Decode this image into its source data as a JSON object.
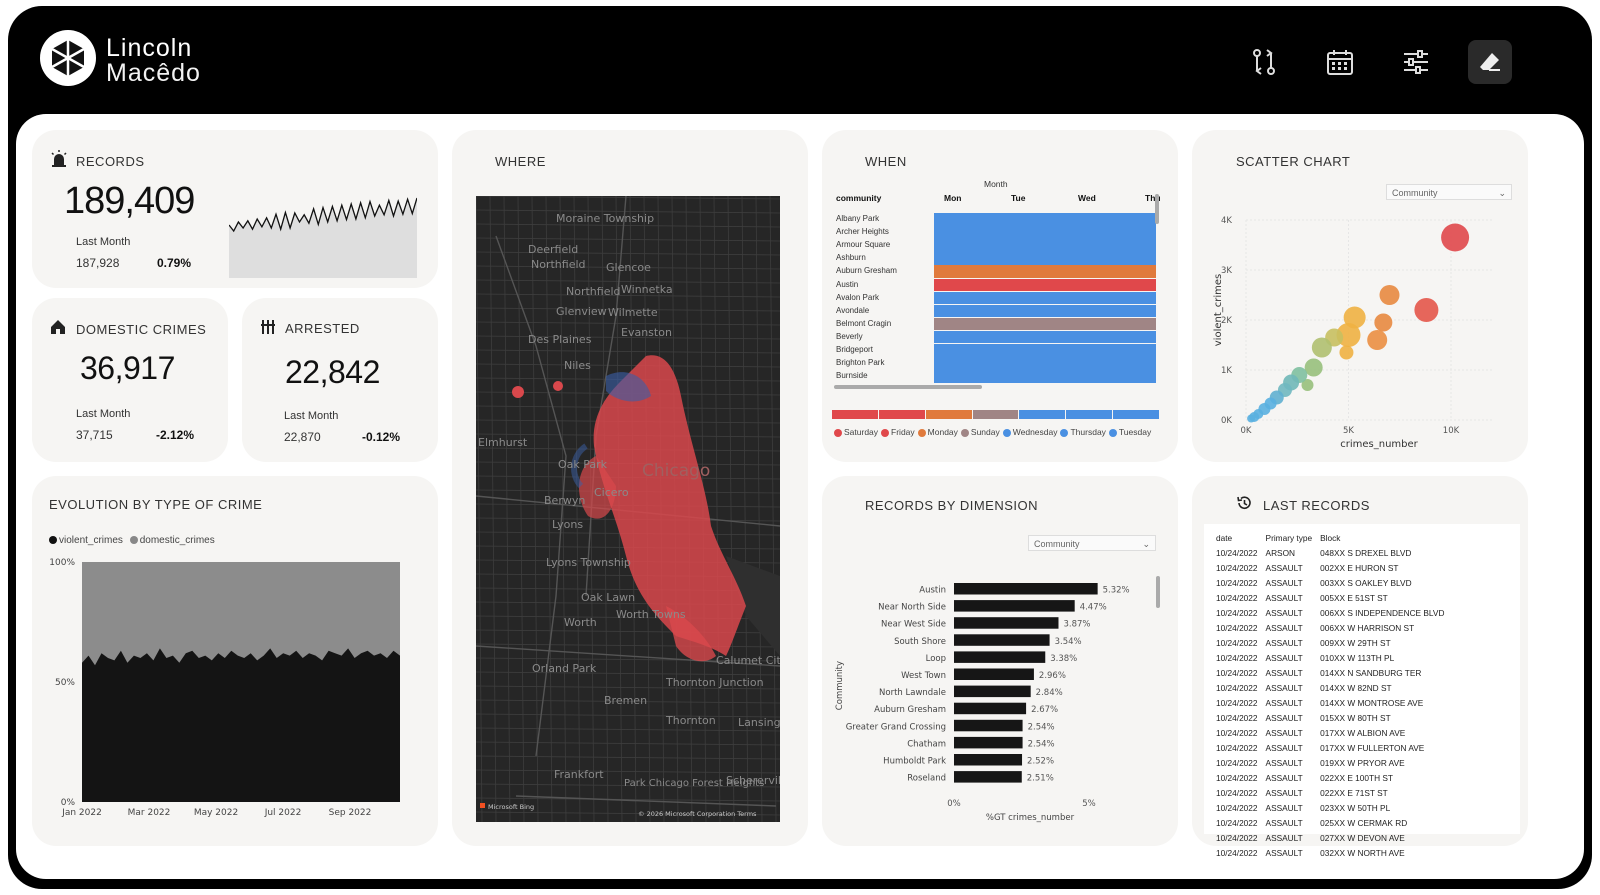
{
  "brand": {
    "line1": "Lincoln",
    "line2": "Macêdo"
  },
  "header_icons": [
    "compare-icon",
    "calendar-icon",
    "filter-sliders-icon",
    "eraser-icon"
  ],
  "colors": {
    "accent": "#e0484b",
    "bar": "#1a1a1a",
    "blue": "#4a90e2",
    "orange": "#e07a3c"
  },
  "records": {
    "title": "RECORDS",
    "value": "189,409",
    "last_label": "Last Month",
    "last_value": "187,928",
    "change": "0.79%"
  },
  "domestic": {
    "title": "DOMESTIC CRIMES",
    "value": "36,917",
    "last_label": "Last Month",
    "last_value": "37,715",
    "change": "-2.12%"
  },
  "arrested": {
    "title": "ARRESTED",
    "value": "22,842",
    "last_label": "Last Month",
    "last_value": "22,870",
    "change": "-0.12%"
  },
  "where": {
    "title": "WHERE",
    "map_labels": [
      "Moraine Township",
      "Deerfield",
      "Northfield",
      "Glencoe",
      "Winnetka",
      "Northfield",
      "Glenview",
      "Wilmette",
      "Evanston",
      "Des Plaines",
      "Niles",
      "Elmhurst",
      "Oak Park",
      "Berwyn",
      "Cicero",
      "Lyons",
      "Lyons Township",
      "Oak Lawn",
      "Worth",
      "Worth Towns",
      "Orland Park",
      "Bremen",
      "Thornton Junction",
      "Thornton",
      "Calumet City",
      "Lansing",
      "Frankfort",
      "Park Chicago Forest Heights",
      "Schererville",
      "Chicago"
    ],
    "attribution": "© 2026 Microsoft Corporation   Terms",
    "bing": "Microsoft Bing"
  },
  "when": {
    "title": "WHEN",
    "month_label": "Month",
    "col_header": "community",
    "days": [
      "Mon",
      "Tue",
      "Wed",
      "Thu"
    ],
    "communities": [
      "Albany Park",
      "Archer Heights",
      "Armour Square",
      "Ashburn",
      "Auburn Gresham",
      "Austin",
      "Avalon Park",
      "Avondale",
      "Belmont Cragin",
      "Beverly",
      "Bridgeport",
      "Brighton Park",
      "Burnside"
    ],
    "legend": [
      {
        "name": "Saturday",
        "color": "#e0484b"
      },
      {
        "name": "Friday",
        "color": "#e0484b"
      },
      {
        "name": "Monday",
        "color": "#e07a3c"
      },
      {
        "name": "Sunday",
        "color": "#a08585"
      },
      {
        "name": "Wednesday",
        "color": "#4a90e2"
      },
      {
        "name": "Thursday",
        "color": "#4a90e2"
      },
      {
        "name": "Tuesday",
        "color": "#4a90e2"
      }
    ]
  },
  "scatter": {
    "title": "SCATTER CHART",
    "dropdown": "Community"
  },
  "evolution": {
    "title": "EVOLUTION BY TYPE OF CRIME"
  },
  "dimension": {
    "title": "RECORDS BY DIMENSION",
    "dropdown": "Community"
  },
  "last_records": {
    "title": "LAST RECORDS",
    "headers": [
      "date",
      "Primary type",
      "Block"
    ],
    "rows": [
      [
        "10/24/2022",
        "ARSON",
        "048XX S DREXEL BLVD"
      ],
      [
        "10/24/2022",
        "ASSAULT",
        "002XX E HURON ST"
      ],
      [
        "10/24/2022",
        "ASSAULT",
        "003XX S OAKLEY BLVD"
      ],
      [
        "10/24/2022",
        "ASSAULT",
        "005XX E 51ST ST"
      ],
      [
        "10/24/2022",
        "ASSAULT",
        "006XX S INDEPENDENCE BLVD"
      ],
      [
        "10/24/2022",
        "ASSAULT",
        "006XX W HARRISON ST"
      ],
      [
        "10/24/2022",
        "ASSAULT",
        "009XX W 29TH ST"
      ],
      [
        "10/24/2022",
        "ASSAULT",
        "010XX W 113TH PL"
      ],
      [
        "10/24/2022",
        "ASSAULT",
        "014XX N SANDBURG TER"
      ],
      [
        "10/24/2022",
        "ASSAULT",
        "014XX W 82ND ST"
      ],
      [
        "10/24/2022",
        "ASSAULT",
        "014XX W MONTROSE AVE"
      ],
      [
        "10/24/2022",
        "ASSAULT",
        "015XX W 80TH ST"
      ],
      [
        "10/24/2022",
        "ASSAULT",
        "017XX W ALBION AVE"
      ],
      [
        "10/24/2022",
        "ASSAULT",
        "017XX W FULLERTON AVE"
      ],
      [
        "10/24/2022",
        "ASSAULT",
        "019XX W PRYOR AVE"
      ],
      [
        "10/24/2022",
        "ASSAULT",
        "022XX E 100TH ST"
      ],
      [
        "10/24/2022",
        "ASSAULT",
        "022XX E 71ST ST"
      ],
      [
        "10/24/2022",
        "ASSAULT",
        "023XX W 50TH PL"
      ],
      [
        "10/24/2022",
        "ASSAULT",
        "025XX W CERMAK RD"
      ],
      [
        "10/24/2022",
        "ASSAULT",
        "027XX W DEVON AVE"
      ],
      [
        "10/24/2022",
        "ASSAULT",
        "032XX W NORTH AVE"
      ]
    ]
  },
  "chart_data": [
    {
      "type": "line",
      "name": "records-sparkline",
      "title": "",
      "ylim": [
        0,
        1
      ],
      "values": [
        0.45,
        0.55,
        0.5,
        0.6,
        0.52,
        0.58,
        0.55,
        0.62,
        0.57,
        0.6,
        0.63,
        0.58,
        0.66,
        0.6,
        0.65,
        0.7,
        0.62,
        0.68,
        0.72,
        0.66,
        0.74,
        0.7,
        0.76,
        0.72,
        0.78,
        0.74,
        0.8,
        0.75,
        0.82,
        0.77,
        0.84,
        0.8,
        0.78,
        0.82,
        0.86,
        0.8,
        0.85,
        0.83,
        0.88,
        0.84,
        0.9
      ]
    },
    {
      "type": "area",
      "title": "",
      "legend": [
        "violent_crimes",
        "domestic_crimes"
      ],
      "legend_colors": [
        "#111111",
        "#888888"
      ],
      "x_ticks": [
        "Jan 2022",
        "Mar 2022",
        "May 2022",
        "Jul 2022",
        "Sep 2022"
      ],
      "y_ticks": [
        "100%",
        "50%",
        "0%"
      ],
      "ylim": [
        0,
        100
      ],
      "series": [
        {
          "name": "violent_crimes",
          "values": [
            58,
            61,
            57,
            62,
            60,
            59,
            63,
            58,
            61,
            60,
            62,
            59,
            64,
            60,
            61,
            58,
            62,
            63,
            60,
            61,
            59,
            62,
            60,
            63,
            61,
            60,
            62,
            59,
            61,
            64,
            60,
            62,
            61,
            63,
            60,
            62,
            61,
            59,
            63,
            62,
            61,
            64,
            60,
            62,
            63,
            61,
            62,
            60,
            63,
            61
          ]
        },
        {
          "name": "domestic_crimes",
          "values": [
            42,
            39,
            43,
            38,
            40,
            41,
            37,
            42,
            39,
            40,
            38,
            41,
            36,
            40,
            39,
            42,
            38,
            37,
            40,
            39,
            41,
            38,
            40,
            37,
            39,
            40,
            38,
            41,
            39,
            36,
            40,
            38,
            39,
            37,
            40,
            38,
            39,
            41,
            37,
            38,
            39,
            36,
            40,
            38,
            37,
            39,
            38,
            40,
            37,
            39
          ]
        }
      ]
    },
    {
      "type": "heatmap",
      "title": "",
      "x": [
        "Mon",
        "Tue",
        "Wed",
        "Thu"
      ],
      "y": [
        "Albany Park",
        "Archer Heights",
        "Armour Square",
        "Ashburn",
        "Auburn Gresham",
        "Austin",
        "Avalon Park",
        "Avondale",
        "Belmont Cragin",
        "Beverly",
        "Bridgeport",
        "Brighton Park",
        "Burnside"
      ],
      "row_colors": [
        "#4a90e2",
        "#4a90e2",
        "#4a90e2",
        "#4a90e2",
        "#e07a3c",
        "#e0484b",
        "#4a90e2",
        "#4a90e2",
        "#a08585",
        "#4a90e2",
        "#4a90e2",
        "#4a90e2",
        "#4a90e2"
      ]
    },
    {
      "type": "scatter",
      "title": "",
      "xlabel": "crimes_number",
      "ylabel": "violent_crimes",
      "xlim": [
        0,
        12000
      ],
      "ylim": [
        0,
        4000
      ],
      "x_ticks": [
        "0K",
        "5K",
        "10K"
      ],
      "y_ticks": [
        "0K",
        "1K",
        "2K",
        "3K",
        "4K"
      ],
      "points": [
        {
          "x": 10200,
          "y": 3650,
          "r": 14,
          "c": "#e0484b"
        },
        {
          "x": 8800,
          "y": 2200,
          "r": 12,
          "c": "#e4574a"
        },
        {
          "x": 7000,
          "y": 2500,
          "r": 10,
          "c": "#e88a40"
        },
        {
          "x": 6700,
          "y": 1950,
          "r": 9,
          "c": "#e88a40"
        },
        {
          "x": 6400,
          "y": 1600,
          "r": 10,
          "c": "#eb8f42"
        },
        {
          "x": 5300,
          "y": 2050,
          "r": 11,
          "c": "#f0b142"
        },
        {
          "x": 5000,
          "y": 1700,
          "r": 12,
          "c": "#f0b142"
        },
        {
          "x": 4900,
          "y": 1350,
          "r": 7,
          "c": "#f0b142"
        },
        {
          "x": 4300,
          "y": 1650,
          "r": 9,
          "c": "#c8c060"
        },
        {
          "x": 3700,
          "y": 1450,
          "r": 10,
          "c": "#b0c070"
        },
        {
          "x": 3300,
          "y": 1050,
          "r": 9,
          "c": "#98c07c"
        },
        {
          "x": 3000,
          "y": 700,
          "r": 6,
          "c": "#98c07c"
        },
        {
          "x": 2600,
          "y": 900,
          "r": 8,
          "c": "#80c0a0"
        },
        {
          "x": 2200,
          "y": 750,
          "r": 8,
          "c": "#70b8b8"
        },
        {
          "x": 1900,
          "y": 600,
          "r": 7,
          "c": "#70b8c0"
        },
        {
          "x": 1500,
          "y": 450,
          "r": 7,
          "c": "#60b0d0"
        },
        {
          "x": 1200,
          "y": 330,
          "r": 6,
          "c": "#5ab0e0"
        },
        {
          "x": 900,
          "y": 220,
          "r": 6,
          "c": "#5ab0e0"
        },
        {
          "x": 600,
          "y": 120,
          "r": 5,
          "c": "#5ab0e0"
        },
        {
          "x": 400,
          "y": 60,
          "r": 5,
          "c": "#5ab0e0"
        },
        {
          "x": 250,
          "y": 30,
          "r": 4,
          "c": "#5ab0e0"
        }
      ]
    },
    {
      "type": "bar",
      "title": "",
      "xlabel": "%GT crimes_number",
      "ylabel": "Community",
      "x_ticks": [
        "0%",
        "5%"
      ],
      "xlim": [
        0,
        6
      ],
      "categories": [
        "Austin",
        "Near North Side",
        "Near West Side",
        "South Shore",
        "Loop",
        "West Town",
        "North Lawndale",
        "Auburn Gresham",
        "Greater Grand Crossing",
        "Chatham",
        "Humboldt Park",
        "Roseland"
      ],
      "values": [
        5.32,
        4.47,
        3.87,
        3.54,
        3.38,
        2.96,
        2.84,
        2.67,
        2.54,
        2.54,
        2.52,
        2.51
      ],
      "labels": [
        "5.32%",
        "4.47%",
        "3.87%",
        "3.54%",
        "3.38%",
        "2.96%",
        "2.84%",
        "2.67%",
        "2.54%",
        "2.54%",
        "2.52%",
        "2.51%"
      ]
    }
  ]
}
